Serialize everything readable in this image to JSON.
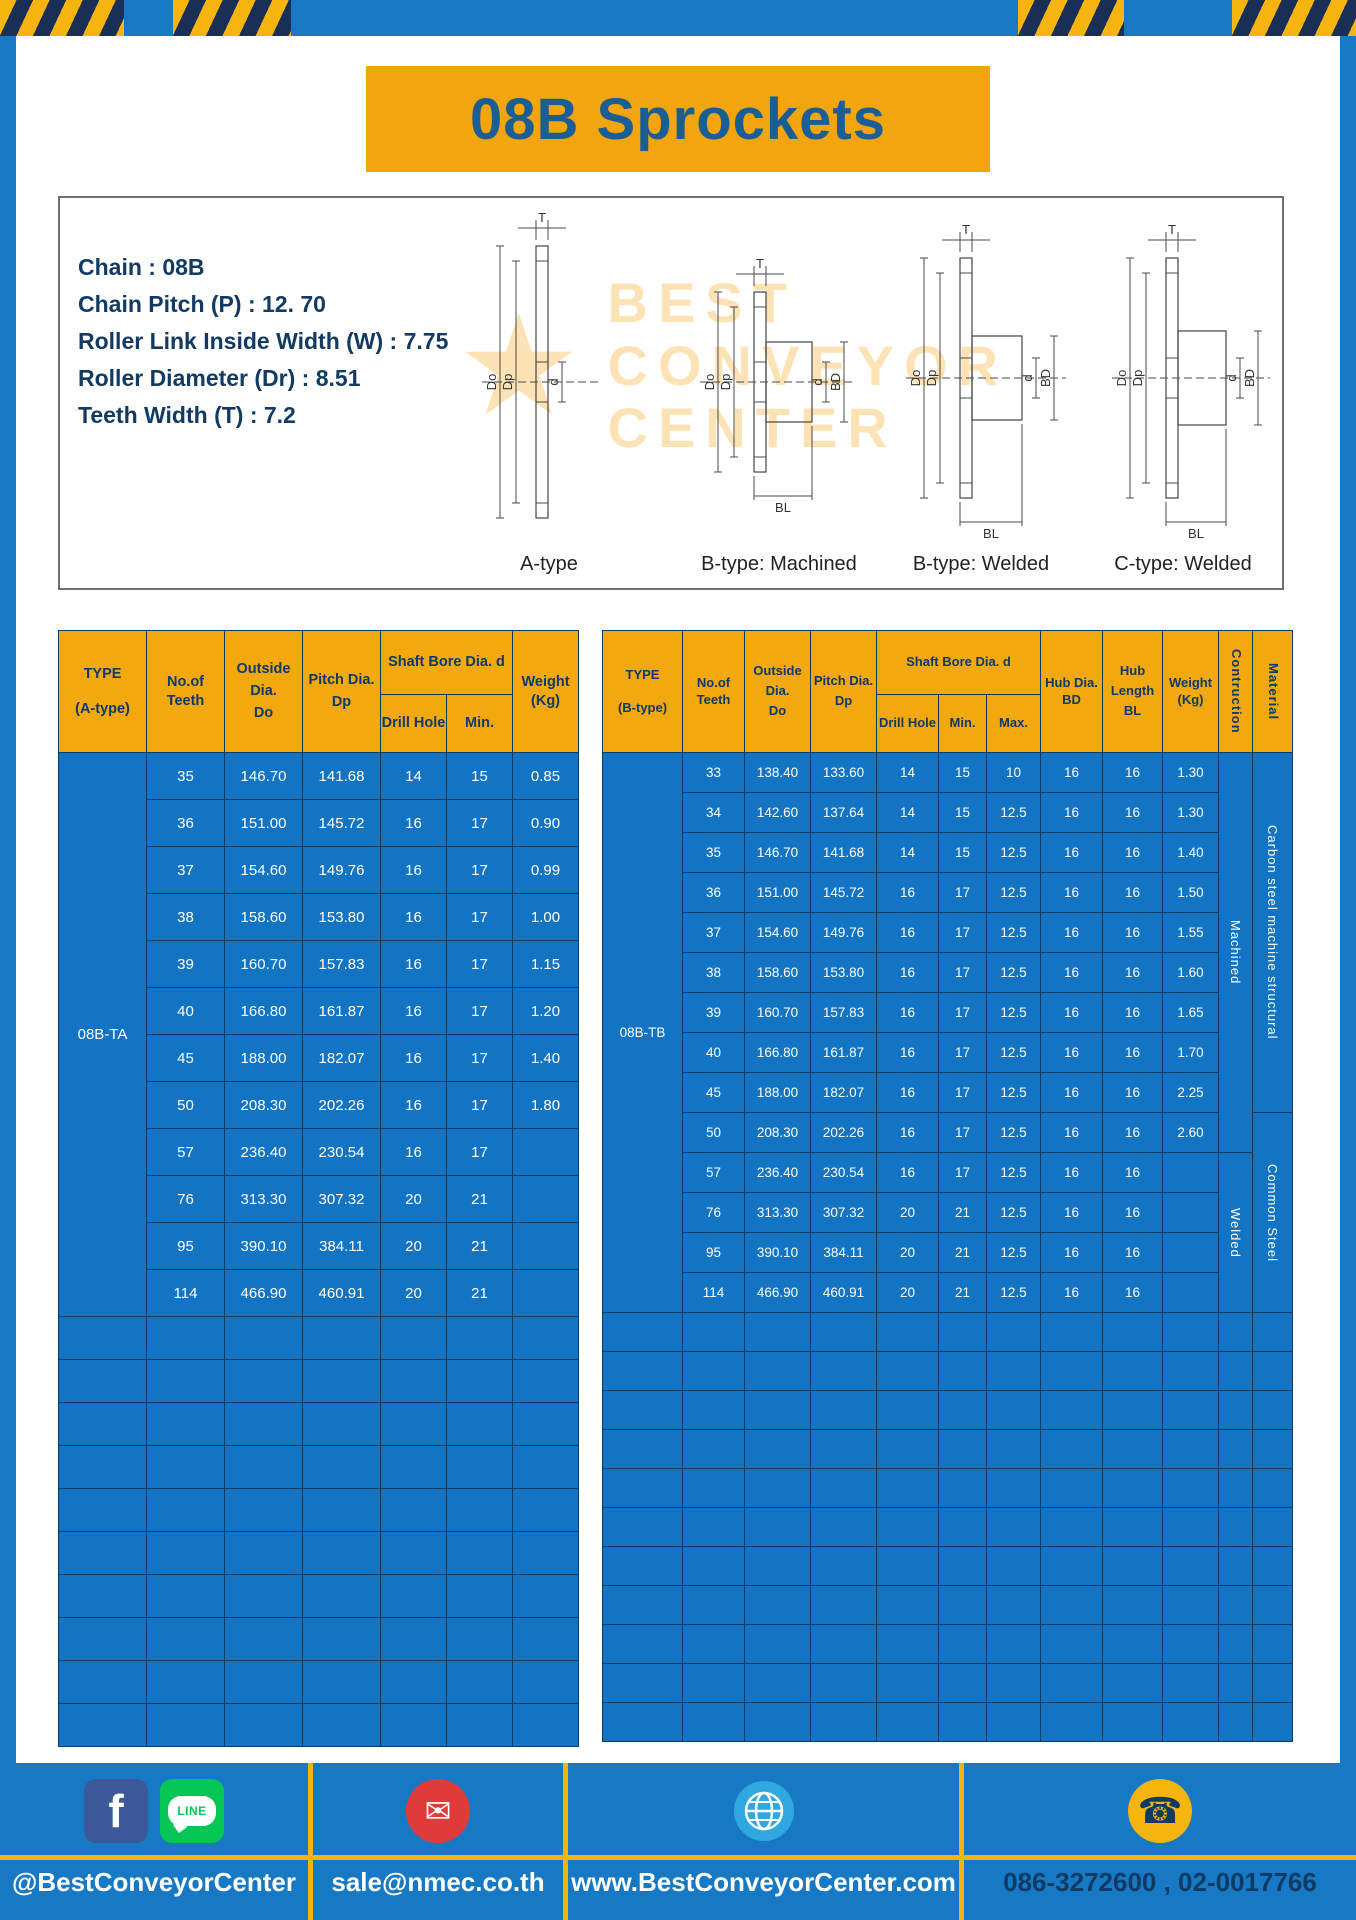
{
  "page": {
    "title": "08B Sprockets"
  },
  "colors": {
    "frame_blue": "#1779C4",
    "accent_amber": "#F3A80E",
    "table_cell_blue": "#1374C4",
    "table_border_navy": "#0C3A63",
    "navy_text": "#123A63",
    "title_text": "#1A5E94",
    "hazard_yellow": "#F6B40E",
    "hazard_navy": "#1A2F55"
  },
  "specs": [
    {
      "label": "Chain",
      "value": "08B"
    },
    {
      "label": "Chain Pitch (P)",
      "value": "12. 70"
    },
    {
      "label": "Roller Link Inside Width (W)",
      "value": "7.75"
    },
    {
      "label": "Roller Diameter (Dr)",
      "value": "8.51"
    },
    {
      "label": "Teeth Width (T)",
      "value": "7.2"
    }
  ],
  "watermark": {
    "symbol": "★",
    "lines": [
      "BEST",
      "CONVEYOR",
      "CENTER"
    ]
  },
  "drawings": {
    "captions": [
      "A-type",
      "B-type: Machined",
      "B-type: Welded",
      "C-type: Welded"
    ],
    "dims": {
      "T": "T",
      "Do": "Do",
      "Dp": "Dp",
      "d": "d",
      "BD": "BD",
      "BL": "BL"
    }
  },
  "table_a": {
    "header": {
      "type": [
        "TYPE",
        "(A-type)"
      ],
      "teeth": [
        "No.of",
        "Teeth"
      ],
      "outside": [
        "Outside",
        "Dia.",
        "Do"
      ],
      "pitch": [
        "Pitch Dia.",
        "Dp"
      ],
      "shaft_group": "Shaft Bore Dia. d",
      "drill": "Drill Hole",
      "min": "Min.",
      "weight": [
        "Weight",
        "(Kg)"
      ]
    },
    "type_value": "08B-TA",
    "rows": [
      {
        "teeth": "35",
        "do": "146.70",
        "dp": "141.68",
        "drill": "14",
        "min": "15",
        "weight": "0.85"
      },
      {
        "teeth": "36",
        "do": "151.00",
        "dp": "145.72",
        "drill": "16",
        "min": "17",
        "weight": "0.90"
      },
      {
        "teeth": "37",
        "do": "154.60",
        "dp": "149.76",
        "drill": "16",
        "min": "17",
        "weight": "0.99"
      },
      {
        "teeth": "38",
        "do": "158.60",
        "dp": "153.80",
        "drill": "16",
        "min": "17",
        "weight": "1.00"
      },
      {
        "teeth": "39",
        "do": "160.70",
        "dp": "157.83",
        "drill": "16",
        "min": "17",
        "weight": "1.15"
      },
      {
        "teeth": "40",
        "do": "166.80",
        "dp": "161.87",
        "drill": "16",
        "min": "17",
        "weight": "1.20"
      },
      {
        "teeth": "45",
        "do": "188.00",
        "dp": "182.07",
        "drill": "16",
        "min": "17",
        "weight": "1.40"
      },
      {
        "teeth": "50",
        "do": "208.30",
        "dp": "202.26",
        "drill": "16",
        "min": "17",
        "weight": "1.80"
      },
      {
        "teeth": "57",
        "do": "236.40",
        "dp": "230.54",
        "drill": "16",
        "min": "17",
        "weight": ""
      },
      {
        "teeth": "76",
        "do": "313.30",
        "dp": "307.32",
        "drill": "20",
        "min": "21",
        "weight": ""
      },
      {
        "teeth": "95",
        "do": "390.10",
        "dp": "384.11",
        "drill": "20",
        "min": "21",
        "weight": ""
      },
      {
        "teeth": "114",
        "do": "466.90",
        "dp": "460.91",
        "drill": "20",
        "min": "21",
        "weight": ""
      }
    ],
    "empty_rows": 10
  },
  "table_b": {
    "header": {
      "type": [
        "TYPE",
        "(B-type)"
      ],
      "teeth": [
        "No.of",
        "Teeth"
      ],
      "outside": [
        "Outside",
        "Dia.",
        "Do"
      ],
      "pitch": [
        "Pitch Dia.",
        "Dp"
      ],
      "shaft_group": "Shaft Bore Dia. d",
      "drill": "Drill Hole",
      "min": "Min.",
      "max": "Max.",
      "bd": [
        "Hub Dia.",
        "BD"
      ],
      "bl": [
        "Hub",
        "Length",
        "BL"
      ],
      "weight": [
        "Weight",
        "(Kg)"
      ],
      "construction": "Contruction",
      "material": "Material"
    },
    "type_value": "08B-TB",
    "rows": [
      {
        "teeth": "33",
        "do": "138.40",
        "dp": "133.60",
        "drill": "14",
        "min": "15",
        "max": "10",
        "bd": "16",
        "bl": "16",
        "weight": "1.30"
      },
      {
        "teeth": "34",
        "do": "142.60",
        "dp": "137.64",
        "drill": "14",
        "min": "15",
        "max": "12.5",
        "bd": "16",
        "bl": "16",
        "weight": "1.30"
      },
      {
        "teeth": "35",
        "do": "146.70",
        "dp": "141.68",
        "drill": "14",
        "min": "15",
        "max": "12.5",
        "bd": "16",
        "bl": "16",
        "weight": "1.40"
      },
      {
        "teeth": "36",
        "do": "151.00",
        "dp": "145.72",
        "drill": "16",
        "min": "17",
        "max": "12.5",
        "bd": "16",
        "bl": "16",
        "weight": "1.50"
      },
      {
        "teeth": "37",
        "do": "154.60",
        "dp": "149.76",
        "drill": "16",
        "min": "17",
        "max": "12.5",
        "bd": "16",
        "bl": "16",
        "weight": "1.55"
      },
      {
        "teeth": "38",
        "do": "158.60",
        "dp": "153.80",
        "drill": "16",
        "min": "17",
        "max": "12.5",
        "bd": "16",
        "bl": "16",
        "weight": "1.60"
      },
      {
        "teeth": "39",
        "do": "160.70",
        "dp": "157.83",
        "drill": "16",
        "min": "17",
        "max": "12.5",
        "bd": "16",
        "bl": "16",
        "weight": "1.65"
      },
      {
        "teeth": "40",
        "do": "166.80",
        "dp": "161.87",
        "drill": "16",
        "min": "17",
        "max": "12.5",
        "bd": "16",
        "bl": "16",
        "weight": "1.70"
      },
      {
        "teeth": "45",
        "do": "188.00",
        "dp": "182.07",
        "drill": "16",
        "min": "17",
        "max": "12.5",
        "bd": "16",
        "bl": "16",
        "weight": "2.25"
      },
      {
        "teeth": "50",
        "do": "208.30",
        "dp": "202.26",
        "drill": "16",
        "min": "17",
        "max": "12.5",
        "bd": "16",
        "bl": "16",
        "weight": "2.60"
      },
      {
        "teeth": "57",
        "do": "236.40",
        "dp": "230.54",
        "drill": "16",
        "min": "17",
        "max": "12.5",
        "bd": "16",
        "bl": "16",
        "weight": ""
      },
      {
        "teeth": "76",
        "do": "313.30",
        "dp": "307.32",
        "drill": "20",
        "min": "21",
        "max": "12.5",
        "bd": "16",
        "bl": "16",
        "weight": ""
      },
      {
        "teeth": "95",
        "do": "390.10",
        "dp": "384.11",
        "drill": "20",
        "min": "21",
        "max": "12.5",
        "bd": "16",
        "bl": "16",
        "weight": ""
      },
      {
        "teeth": "114",
        "do": "466.90",
        "dp": "460.91",
        "drill": "20",
        "min": "21",
        "max": "12.5",
        "bd": "16",
        "bl": "16",
        "weight": ""
      }
    ],
    "construction_groups": [
      {
        "label": "Machined",
        "rows": 10
      },
      {
        "label": "Welded",
        "rows": 4
      }
    ],
    "material_groups": [
      {
        "label": "Carbon steel  machine structural",
        "rows": 9
      },
      {
        "label": "Common  Steel",
        "rows": 5
      }
    ],
    "empty_rows": 11
  },
  "footer": {
    "facebook_glyph": "f",
    "line_glyph": "LINE",
    "email_glyph": "✉",
    "phone_glyph": "☎",
    "sections": [
      {
        "name": "social",
        "label": "@BestConveyorCenter"
      },
      {
        "name": "email",
        "label": "sale@nmec.co.th"
      },
      {
        "name": "website",
        "label": "www.BestConveyorCenter.com"
      },
      {
        "name": "phone",
        "label": "086-3272600 , 02-0017766"
      }
    ]
  }
}
